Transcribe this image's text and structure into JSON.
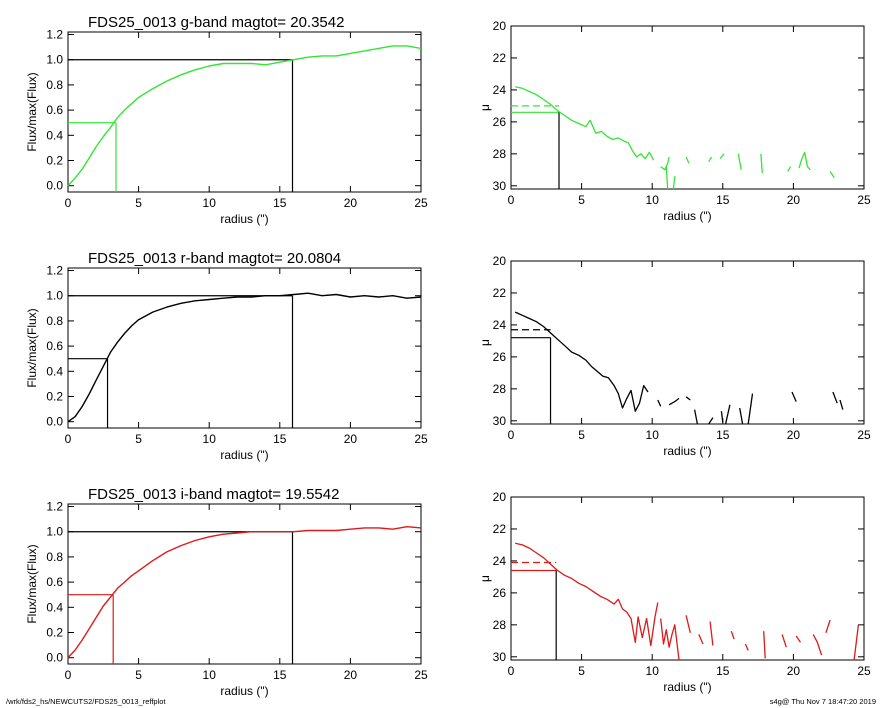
{
  "footer": {
    "left": "/wrk/fds2_hs/NEWCUTS2/FDS25_0013_reffplot",
    "right": "s4g@  Thu Nov  7 18:47:20 2019"
  },
  "colors": {
    "g": "#33e633",
    "r": "#000000",
    "i": "#dd1a1a",
    "axis": "#000000"
  },
  "chart_data": [
    {
      "type": "line",
      "band": "g",
      "panel": "growth-curve",
      "title": "FDS25_0013 g-band  magtot=     20.3542",
      "xlabel": "radius (\")",
      "ylabel": "Flux/max(Flux)",
      "xlim": [
        0,
        25
      ],
      "ylim": [
        -0.05,
        1.22
      ],
      "xticks": [
        0,
        5,
        10,
        15,
        20,
        25
      ],
      "yticks": [
        0.0,
        0.2,
        0.4,
        0.6,
        0.8,
        1.0,
        1.2
      ],
      "ytick_labels": [
        "0.0",
        "0.2",
        "0.4",
        "0.6",
        "0.8",
        "1.0",
        "1.2"
      ],
      "x": [
        0,
        0.5,
        1,
        1.5,
        2,
        2.5,
        3,
        3.5,
        4,
        4.5,
        5,
        6,
        7,
        8,
        9,
        10,
        11,
        12,
        13,
        14,
        15,
        16,
        17,
        18,
        19,
        20,
        21,
        22,
        23,
        24,
        25
      ],
      "y": [
        0.0,
        0.06,
        0.13,
        0.22,
        0.31,
        0.39,
        0.46,
        0.54,
        0.6,
        0.65,
        0.7,
        0.77,
        0.83,
        0.88,
        0.92,
        0.95,
        0.97,
        0.97,
        0.97,
        0.96,
        0.98,
        1.0,
        1.02,
        1.03,
        1.03,
        1.05,
        1.07,
        1.09,
        1.11,
        1.11,
        1.09
      ],
      "half_light": {
        "radius": 3.4,
        "fraction": 0.5
      },
      "total": {
        "radius": 15.9,
        "fraction": 1.0
      }
    },
    {
      "type": "line",
      "band": "g",
      "panel": "surface-brightness",
      "xlabel": "radius (\")",
      "ylabel": "μ",
      "xlim": [
        0,
        25
      ],
      "ylim": [
        30.2,
        20
      ],
      "y_inverted": true,
      "xticks": [
        0,
        5,
        10,
        15,
        20,
        25
      ],
      "yticks": [
        20,
        22,
        24,
        26,
        28,
        30
      ],
      "segments": [
        [
          [
            0.3,
            23.8
          ],
          [
            0.8,
            23.9
          ],
          [
            1.3,
            24.1
          ],
          [
            1.8,
            24.3
          ],
          [
            2.3,
            24.6
          ],
          [
            2.8,
            24.9
          ],
          [
            3.3,
            25.3
          ],
          [
            3.8,
            25.6
          ],
          [
            4.3,
            25.9
          ],
          [
            4.8,
            26.1
          ],
          [
            5.3,
            26.3
          ],
          [
            5.6,
            25.9
          ],
          [
            6.0,
            26.7
          ],
          [
            6.4,
            26.6
          ],
          [
            6.8,
            26.9
          ],
          [
            7.2,
            27.1
          ],
          [
            7.6,
            27.0
          ],
          [
            8.0,
            27.2
          ],
          [
            8.3,
            27.3
          ],
          [
            8.6,
            27.8
          ],
          [
            8.9,
            28.2
          ],
          [
            9.2,
            28.0
          ],
          [
            9.5,
            28.3
          ],
          [
            9.8,
            27.9
          ],
          [
            10.1,
            28.4
          ]
        ],
        [
          [
            10.6,
            28.8
          ],
          [
            10.9,
            29.0
          ],
          [
            11.1,
            28.6
          ],
          [
            11.2,
            28.2
          ]
        ],
        [
          [
            11.0,
            28.8
          ],
          [
            11.1,
            30.2
          ]
        ],
        [
          [
            11.5,
            30.2
          ],
          [
            11.6,
            29.4
          ]
        ],
        [
          [
            12.4,
            28.2
          ],
          [
            12.6,
            28.6
          ]
        ],
        [
          [
            14.0,
            28.5
          ],
          [
            14.2,
            28.2
          ]
        ],
        [
          [
            14.8,
            28.3
          ],
          [
            15.1,
            28.0
          ]
        ],
        [
          [
            16.1,
            28.0
          ],
          [
            16.3,
            29.0
          ]
        ],
        [
          [
            17.7,
            28.0
          ],
          [
            17.8,
            29.2
          ]
        ],
        [
          [
            19.6,
            29.1
          ],
          [
            19.8,
            28.8
          ]
        ],
        [
          [
            20.4,
            28.9
          ],
          [
            20.6,
            28.3
          ],
          [
            20.8,
            27.9
          ],
          [
            21.0,
            28.8
          ],
          [
            21.2,
            29.0
          ]
        ],
        [
          [
            22.6,
            29.1
          ],
          [
            22.9,
            29.5
          ]
        ]
      ],
      "mu_half": 25.0,
      "mu_eff": 25.4,
      "r_half": 3.4
    },
    {
      "type": "line",
      "band": "r",
      "panel": "growth-curve",
      "title": "FDS25_0013 r-band  magtot=     20.0804",
      "xlabel": "radius (\")",
      "ylabel": "Flux/max(Flux)",
      "xlim": [
        0,
        25
      ],
      "ylim": [
        -0.05,
        1.22
      ],
      "xticks": [
        0,
        5,
        10,
        15,
        20,
        25
      ],
      "yticks": [
        0.0,
        0.2,
        0.4,
        0.6,
        0.8,
        1.0,
        1.2
      ],
      "ytick_labels": [
        "0.0",
        "0.2",
        "0.4",
        "0.6",
        "0.8",
        "1.0",
        "1.2"
      ],
      "x": [
        0,
        0.5,
        1,
        1.5,
        2,
        2.5,
        3,
        3.5,
        4,
        4.5,
        5,
        6,
        7,
        8,
        9,
        10,
        11,
        12,
        13,
        14,
        15,
        16,
        17,
        18,
        19,
        20,
        21,
        22,
        23,
        24,
        25
      ],
      "y": [
        0.0,
        0.04,
        0.12,
        0.22,
        0.33,
        0.44,
        0.55,
        0.63,
        0.7,
        0.76,
        0.81,
        0.87,
        0.91,
        0.94,
        0.96,
        0.97,
        0.98,
        0.99,
        0.99,
        1.0,
        1.0,
        1.01,
        1.02,
        1.0,
        1.01,
        0.99,
        1.0,
        0.99,
        1.0,
        0.98,
        0.99
      ],
      "half_light": {
        "radius": 2.8,
        "fraction": 0.5
      },
      "total": {
        "radius": 15.9,
        "fraction": 1.0
      }
    },
    {
      "type": "line",
      "band": "r",
      "panel": "surface-brightness",
      "xlabel": "radius (\")",
      "ylabel": "μ",
      "xlim": [
        0,
        25
      ],
      "ylim": [
        30.2,
        20
      ],
      "y_inverted": true,
      "xticks": [
        0,
        5,
        10,
        15,
        20,
        25
      ],
      "yticks": [
        20,
        22,
        24,
        26,
        28,
        30
      ],
      "segments": [
        [
          [
            0.3,
            23.2
          ],
          [
            0.8,
            23.4
          ],
          [
            1.3,
            23.6
          ],
          [
            1.8,
            23.8
          ],
          [
            2.3,
            24.1
          ],
          [
            2.8,
            24.5
          ],
          [
            3.3,
            24.9
          ],
          [
            3.8,
            25.3
          ],
          [
            4.3,
            25.7
          ],
          [
            4.8,
            25.9
          ],
          [
            5.3,
            26.2
          ],
          [
            5.7,
            26.6
          ],
          [
            6.1,
            26.9
          ],
          [
            6.5,
            27.2
          ],
          [
            6.9,
            27.3
          ],
          [
            7.3,
            27.8
          ],
          [
            7.6,
            28.3
          ],
          [
            7.9,
            29.2
          ],
          [
            8.2,
            28.6
          ],
          [
            8.5,
            28.1
          ],
          [
            8.8,
            29.4
          ],
          [
            9.1,
            28.9
          ],
          [
            9.4,
            27.8
          ],
          [
            9.7,
            28.2
          ]
        ],
        [
          [
            10.4,
            28.7
          ],
          [
            10.6,
            29.1
          ]
        ],
        [
          [
            11.2,
            29.0
          ],
          [
            11.6,
            28.8
          ],
          [
            11.9,
            28.6
          ]
        ],
        [
          [
            12.4,
            28.5
          ],
          [
            12.7,
            28.7
          ]
        ],
        [
          [
            13.0,
            29.3
          ],
          [
            13.2,
            30.2
          ]
        ],
        [
          [
            14.0,
            30.2
          ],
          [
            14.3,
            29.8
          ]
        ],
        [
          [
            14.9,
            29.4
          ],
          [
            15.0,
            30.1
          ]
        ],
        [
          [
            15.2,
            30.2
          ],
          [
            15.5,
            29.0
          ]
        ],
        [
          [
            16.2,
            29.2
          ],
          [
            16.4,
            30.2
          ]
        ],
        [
          [
            16.8,
            30.2
          ],
          [
            17.1,
            28.3
          ]
        ],
        [
          [
            19.9,
            28.2
          ],
          [
            20.2,
            28.8
          ]
        ],
        [
          [
            22.8,
            28.2
          ],
          [
            23.1,
            28.9
          ]
        ],
        [
          [
            23.3,
            28.7
          ],
          [
            23.5,
            29.3
          ]
        ]
      ],
      "mu_half": 24.3,
      "mu_eff": 24.8,
      "r_half": 2.8
    },
    {
      "type": "line",
      "band": "i",
      "panel": "growth-curve",
      "title": "FDS25_0013 i-band  magtot=     19.5542",
      "xlabel": "radius (\")",
      "ylabel": "Flux/max(Flux)",
      "xlim": [
        0,
        25
      ],
      "ylim": [
        -0.05,
        1.22
      ],
      "xticks": [
        0,
        5,
        10,
        15,
        20,
        25
      ],
      "yticks": [
        0.0,
        0.2,
        0.4,
        0.6,
        0.8,
        1.0,
        1.2
      ],
      "ytick_labels": [
        "0.0",
        "0.2",
        "0.4",
        "0.6",
        "0.8",
        "1.0",
        "1.2"
      ],
      "x": [
        0,
        0.5,
        1,
        1.5,
        2,
        2.5,
        3,
        3.5,
        4,
        4.5,
        5,
        6,
        7,
        8,
        9,
        10,
        11,
        12,
        13,
        14,
        15,
        16,
        17,
        18,
        19,
        20,
        21,
        22,
        23,
        24,
        25
      ],
      "y": [
        0.0,
        0.06,
        0.14,
        0.23,
        0.32,
        0.41,
        0.48,
        0.55,
        0.6,
        0.65,
        0.69,
        0.77,
        0.84,
        0.89,
        0.93,
        0.96,
        0.98,
        0.99,
        1.0,
        1.0,
        1.0,
        1.0,
        1.01,
        1.01,
        1.01,
        1.02,
        1.03,
        1.03,
        1.02,
        1.04,
        1.03
      ],
      "half_light": {
        "radius": 3.2,
        "fraction": 0.5
      },
      "total": {
        "radius": 15.9,
        "fraction": 1.0
      }
    },
    {
      "type": "line",
      "band": "i",
      "panel": "surface-brightness",
      "xlabel": "radius (\")",
      "ylabel": "μ",
      "xlim": [
        0,
        25
      ],
      "ylim": [
        30.2,
        20
      ],
      "y_inverted": true,
      "xticks": [
        0,
        5,
        10,
        15,
        20,
        25
      ],
      "yticks": [
        20,
        22,
        24,
        26,
        28,
        30
      ],
      "segments": [
        [
          [
            0.3,
            22.9
          ],
          [
            0.8,
            23.0
          ],
          [
            1.3,
            23.2
          ],
          [
            1.8,
            23.5
          ],
          [
            2.3,
            23.8
          ],
          [
            2.8,
            24.2
          ],
          [
            3.3,
            24.6
          ],
          [
            3.8,
            24.9
          ],
          [
            4.3,
            25.1
          ],
          [
            4.8,
            25.4
          ],
          [
            5.3,
            25.6
          ],
          [
            5.8,
            25.9
          ],
          [
            6.3,
            26.2
          ],
          [
            6.8,
            26.4
          ],
          [
            7.3,
            26.7
          ],
          [
            7.6,
            26.4
          ],
          [
            7.9,
            27.0
          ],
          [
            8.2,
            27.2
          ],
          [
            8.5,
            27.6
          ],
          [
            8.8,
            29.1
          ],
          [
            9.0,
            27.5
          ],
          [
            9.3,
            28.8
          ],
          [
            9.6,
            27.6
          ],
          [
            9.9,
            29.3
          ],
          [
            10.2,
            27.5
          ],
          [
            10.4,
            26.6
          ]
        ],
        [
          [
            10.6,
            27.6
          ],
          [
            10.8,
            29.2
          ],
          [
            11.0,
            28.3
          ],
          [
            11.2,
            29.4
          ],
          [
            11.4,
            28.6
          ],
          [
            11.6,
            28.0
          ],
          [
            11.9,
            30.2
          ]
        ],
        [
          [
            12.4,
            27.4
          ],
          [
            12.7,
            28.5
          ]
        ],
        [
          [
            13.3,
            28.6
          ],
          [
            13.6,
            29.2
          ]
        ],
        [
          [
            14.1,
            27.8
          ],
          [
            14.3,
            29.3
          ]
        ],
        [
          [
            15.6,
            28.4
          ],
          [
            15.8,
            28.9
          ]
        ],
        [
          [
            16.6,
            29.2
          ],
          [
            16.8,
            29.6
          ]
        ],
        [
          [
            17.9,
            28.4
          ],
          [
            18.0,
            30.1
          ]
        ],
        [
          [
            19.2,
            28.6
          ],
          [
            19.5,
            29.4
          ]
        ],
        [
          [
            20.2,
            28.7
          ],
          [
            20.5,
            29.1
          ]
        ],
        [
          [
            21.4,
            28.6
          ],
          [
            21.7,
            29.1
          ],
          [
            22.0,
            29.9
          ]
        ],
        [
          [
            22.3,
            28.5
          ],
          [
            22.6,
            27.7
          ]
        ],
        [
          [
            24.3,
            30.2
          ],
          [
            24.6,
            28.0
          ]
        ]
      ],
      "mu_half": 24.1,
      "mu_eff": 24.6,
      "r_half": 3.2
    }
  ]
}
